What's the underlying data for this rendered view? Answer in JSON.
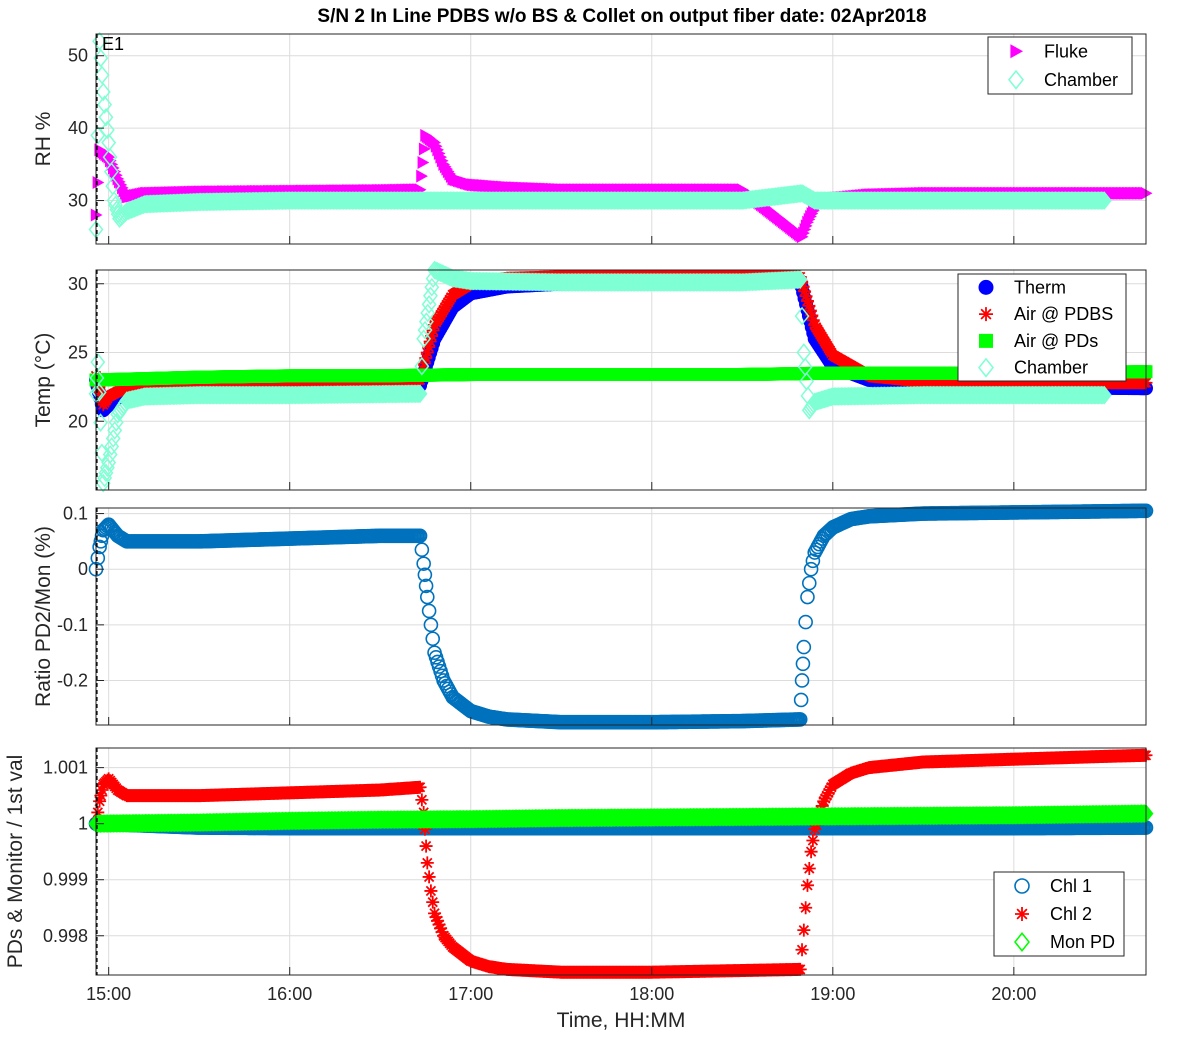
{
  "figure_title": "S/N 2 In Line PDBS w/o BS & Collet on output fiber date: 02Apr2018",
  "chart_data": [
    {
      "type": "scatter",
      "name": "rh",
      "ylabel": "RH %",
      "xlabel": "",
      "xlim": [
        14.93,
        20.73
      ],
      "ylim": [
        24,
        53
      ],
      "yticks": [
        30,
        40,
        50
      ],
      "xticks": [
        15,
        16,
        17,
        18,
        19,
        20
      ],
      "grid": true,
      "legend_position": "top-right",
      "annotation": "E1",
      "series": [
        {
          "name": "Fluke",
          "marker": "triangle-right",
          "color": "#ff00ff",
          "x": [
            14.93,
            14.95,
            15.0,
            15.05,
            15.1,
            15.2,
            15.5,
            16.0,
            16.5,
            16.72,
            16.75,
            16.8,
            16.85,
            16.9,
            17.0,
            17.2,
            17.5,
            18.0,
            18.5,
            18.83,
            18.86,
            18.9,
            19.0,
            19.2,
            19.5,
            20.0,
            20.73
          ],
          "y": [
            28,
            37,
            36,
            33,
            30.5,
            31,
            31.2,
            31.3,
            31.4,
            31.5,
            39,
            38,
            35,
            33,
            32.2,
            31.8,
            31.5,
            31.5,
            31.5,
            25,
            27,
            29,
            30.3,
            30.8,
            31,
            31,
            31
          ]
        },
        {
          "name": "Chamber",
          "marker": "diamond",
          "color": "#7fffd4",
          "x": [
            14.93,
            14.95,
            14.97,
            15.0,
            15.03,
            15.06,
            15.1,
            15.2,
            15.5,
            16.0,
            16.7,
            16.8,
            17.0,
            17.5,
            18.0,
            18.5,
            18.83,
            18.9,
            19.0,
            19.5,
            20.0,
            20.5
          ],
          "y": [
            26,
            52,
            45,
            38,
            30,
            27.5,
            28.5,
            29.5,
            29.8,
            30,
            30,
            30,
            30,
            30,
            30,
            30,
            31,
            30,
            30,
            30,
            30,
            30
          ]
        }
      ]
    },
    {
      "type": "scatter",
      "name": "temp",
      "ylabel": "Temp (°C)",
      "xlabel": "",
      "xlim": [
        14.93,
        20.73
      ],
      "ylim": [
        15,
        31
      ],
      "yticks": [
        20,
        25,
        30
      ],
      "xticks": [
        15,
        16,
        17,
        18,
        19,
        20
      ],
      "grid": true,
      "legend_position": "top-right",
      "series": [
        {
          "name": "Therm",
          "marker": "circle-filled",
          "color": "#0000ff",
          "x": [
            14.93,
            14.97,
            15.0,
            15.1,
            15.2,
            15.5,
            16.0,
            16.72,
            16.8,
            16.9,
            17.0,
            17.2,
            17.5,
            18.0,
            18.5,
            18.82,
            18.9,
            19.0,
            19.2,
            19.5,
            20.0,
            20.73
          ],
          "y": [
            23,
            20.8,
            21.2,
            22.2,
            22.5,
            22.6,
            22.6,
            22.6,
            26,
            28.3,
            29.3,
            29.8,
            30.0,
            30.1,
            30.1,
            30.2,
            26,
            24,
            23,
            22.6,
            22.5,
            22.4
          ]
        },
        {
          "name": "Air @ PDBS",
          "marker": "asterisk",
          "color": "#ff0000",
          "x": [
            14.93,
            14.97,
            15.0,
            15.1,
            15.2,
            15.5,
            16.0,
            16.72,
            16.8,
            16.9,
            17.0,
            17.2,
            17.5,
            18.0,
            18.5,
            18.82,
            18.9,
            19.0,
            19.2,
            19.5,
            20.0,
            20.73
          ],
          "y": [
            23.3,
            21.2,
            21.8,
            22.5,
            22.8,
            22.9,
            22.9,
            23.0,
            27,
            29.2,
            30.0,
            30.4,
            30.5,
            30.5,
            30.5,
            30.5,
            27,
            24.8,
            23.3,
            22.9,
            22.8,
            22.8
          ]
        },
        {
          "name": "Air @ PDs",
          "marker": "square-filled",
          "color": "#00ff00",
          "x": [
            14.93,
            15.5,
            16.0,
            16.5,
            17.0,
            17.5,
            18.0,
            18.5,
            19.0,
            19.5,
            20.0,
            20.73
          ],
          "y": [
            23.0,
            23.2,
            23.3,
            23.3,
            23.4,
            23.4,
            23.4,
            23.4,
            23.5,
            23.5,
            23.5,
            23.6
          ]
        },
        {
          "name": "Chamber",
          "marker": "diamond",
          "color": "#7fffd4",
          "x": [
            14.93,
            14.94,
            14.97,
            15.0,
            15.05,
            15.1,
            15.2,
            15.5,
            16.0,
            16.72,
            16.74,
            16.8,
            16.9,
            17.0,
            17.5,
            18.0,
            18.5,
            18.82,
            18.84,
            18.87,
            18.9,
            19.0,
            19.5,
            20.0,
            20.5
          ],
          "y": [
            22,
            24.3,
            15.5,
            17,
            20.5,
            21.5,
            21.8,
            21.9,
            21.9,
            22,
            26,
            31,
            30.4,
            30.2,
            30.1,
            30.1,
            30.1,
            30.3,
            25,
            20.8,
            21.4,
            21.8,
            21.9,
            21.9,
            21.9
          ]
        }
      ]
    },
    {
      "type": "scatter",
      "name": "ratio",
      "ylabel": "Ratio PD2/Mon (%)",
      "xlabel": "",
      "xlim": [
        14.93,
        20.73
      ],
      "ylim": [
        -0.28,
        0.11
      ],
      "yticks": [
        -0.2,
        -0.1,
        0,
        0.1
      ],
      "xticks": [
        15,
        16,
        17,
        18,
        19,
        20
      ],
      "grid": true,
      "series": [
        {
          "name": "",
          "marker": "circle",
          "color": "#0072bd",
          "x": [
            14.93,
            14.95,
            14.97,
            15.0,
            15.05,
            15.1,
            15.2,
            15.5,
            16.0,
            16.5,
            16.72,
            16.74,
            16.76,
            16.78,
            16.8,
            16.85,
            16.9,
            17.0,
            17.1,
            17.2,
            17.5,
            18.0,
            18.5,
            18.82,
            18.83,
            18.84,
            18.86,
            18.88,
            18.9,
            18.95,
            19.0,
            19.1,
            19.2,
            19.5,
            20.0,
            20.5,
            20.73
          ],
          "y": [
            0.0,
            0.04,
            0.07,
            0.08,
            0.06,
            0.05,
            0.05,
            0.05,
            0.055,
            0.06,
            0.06,
            0.01,
            -0.05,
            -0.1,
            -0.15,
            -0.2,
            -0.23,
            -0.255,
            -0.265,
            -0.27,
            -0.275,
            -0.275,
            -0.273,
            -0.27,
            -0.2,
            -0.14,
            -0.05,
            0.0,
            0.03,
            0.06,
            0.075,
            0.09,
            0.095,
            0.1,
            0.102,
            0.104,
            0.105
          ]
        }
      ]
    },
    {
      "type": "scatter",
      "name": "norm",
      "ylabel": "PDs & Monitor / 1st val",
      "xlabel": "Time, HH:MM",
      "xlim": [
        14.93,
        20.73
      ],
      "ylim": [
        0.9973,
        1.00135
      ],
      "yticks": [
        0.998,
        0.999,
        1,
        1.001
      ],
      "ytick_labels": [
        "0.998",
        "0.999",
        "1",
        "1.001"
      ],
      "xticks": [
        15,
        16,
        17,
        18,
        19,
        20
      ],
      "xtick_labels": [
        "15:00",
        "16:00",
        "17:00",
        "18:00",
        "19:00",
        "20:00"
      ],
      "grid": true,
      "legend_position": "bottom-right",
      "series": [
        {
          "name": "Chl 1",
          "marker": "circle",
          "color": "#0072bd",
          "x": [
            14.93,
            15.5,
            16.0,
            16.5,
            17.0,
            17.5,
            18.0,
            18.5,
            19.0,
            19.5,
            20.0,
            20.73
          ],
          "y": [
            1.0,
            0.99993,
            0.99992,
            0.99992,
            0.99992,
            0.99992,
            0.99992,
            0.99992,
            0.99992,
            0.99992,
            0.99992,
            0.99993
          ]
        },
        {
          "name": "Chl 2",
          "marker": "asterisk",
          "color": "#ff0000",
          "x": [
            14.93,
            14.95,
            14.97,
            15.0,
            15.05,
            15.1,
            15.2,
            15.5,
            16.0,
            16.5,
            16.72,
            16.74,
            16.76,
            16.78,
            16.8,
            16.85,
            16.9,
            17.0,
            17.1,
            17.2,
            17.5,
            18.0,
            18.5,
            18.82,
            18.84,
            18.86,
            18.88,
            18.9,
            18.95,
            19.0,
            19.1,
            19.2,
            19.5,
            20.0,
            20.5,
            20.73
          ],
          "y": [
            1.0,
            1.0004,
            1.0007,
            1.0008,
            1.0006,
            1.0005,
            1.0005,
            1.0005,
            1.00055,
            1.0006,
            1.00065,
            1.0002,
            0.9993,
            0.9988,
            0.9984,
            0.998,
            0.9978,
            0.99755,
            0.99745,
            0.9974,
            0.99735,
            0.99735,
            0.99738,
            0.9974,
            0.9981,
            0.9989,
            0.9995,
            0.9999,
            1.0004,
            1.0007,
            1.0009,
            1.001,
            1.0011,
            1.00115,
            1.0012,
            1.00122
          ]
        },
        {
          "name": "Mon PD",
          "marker": "diamond",
          "color": "#00ff00",
          "x": [
            14.93,
            15.5,
            16.0,
            16.5,
            17.0,
            17.5,
            18.0,
            18.5,
            19.0,
            19.5,
            20.0,
            20.73
          ],
          "y": [
            1.0,
            1.00002,
            1.00005,
            1.00007,
            1.00008,
            1.0001,
            1.00011,
            1.00012,
            1.00013,
            1.00014,
            1.00015,
            1.00018
          ]
        }
      ]
    }
  ]
}
